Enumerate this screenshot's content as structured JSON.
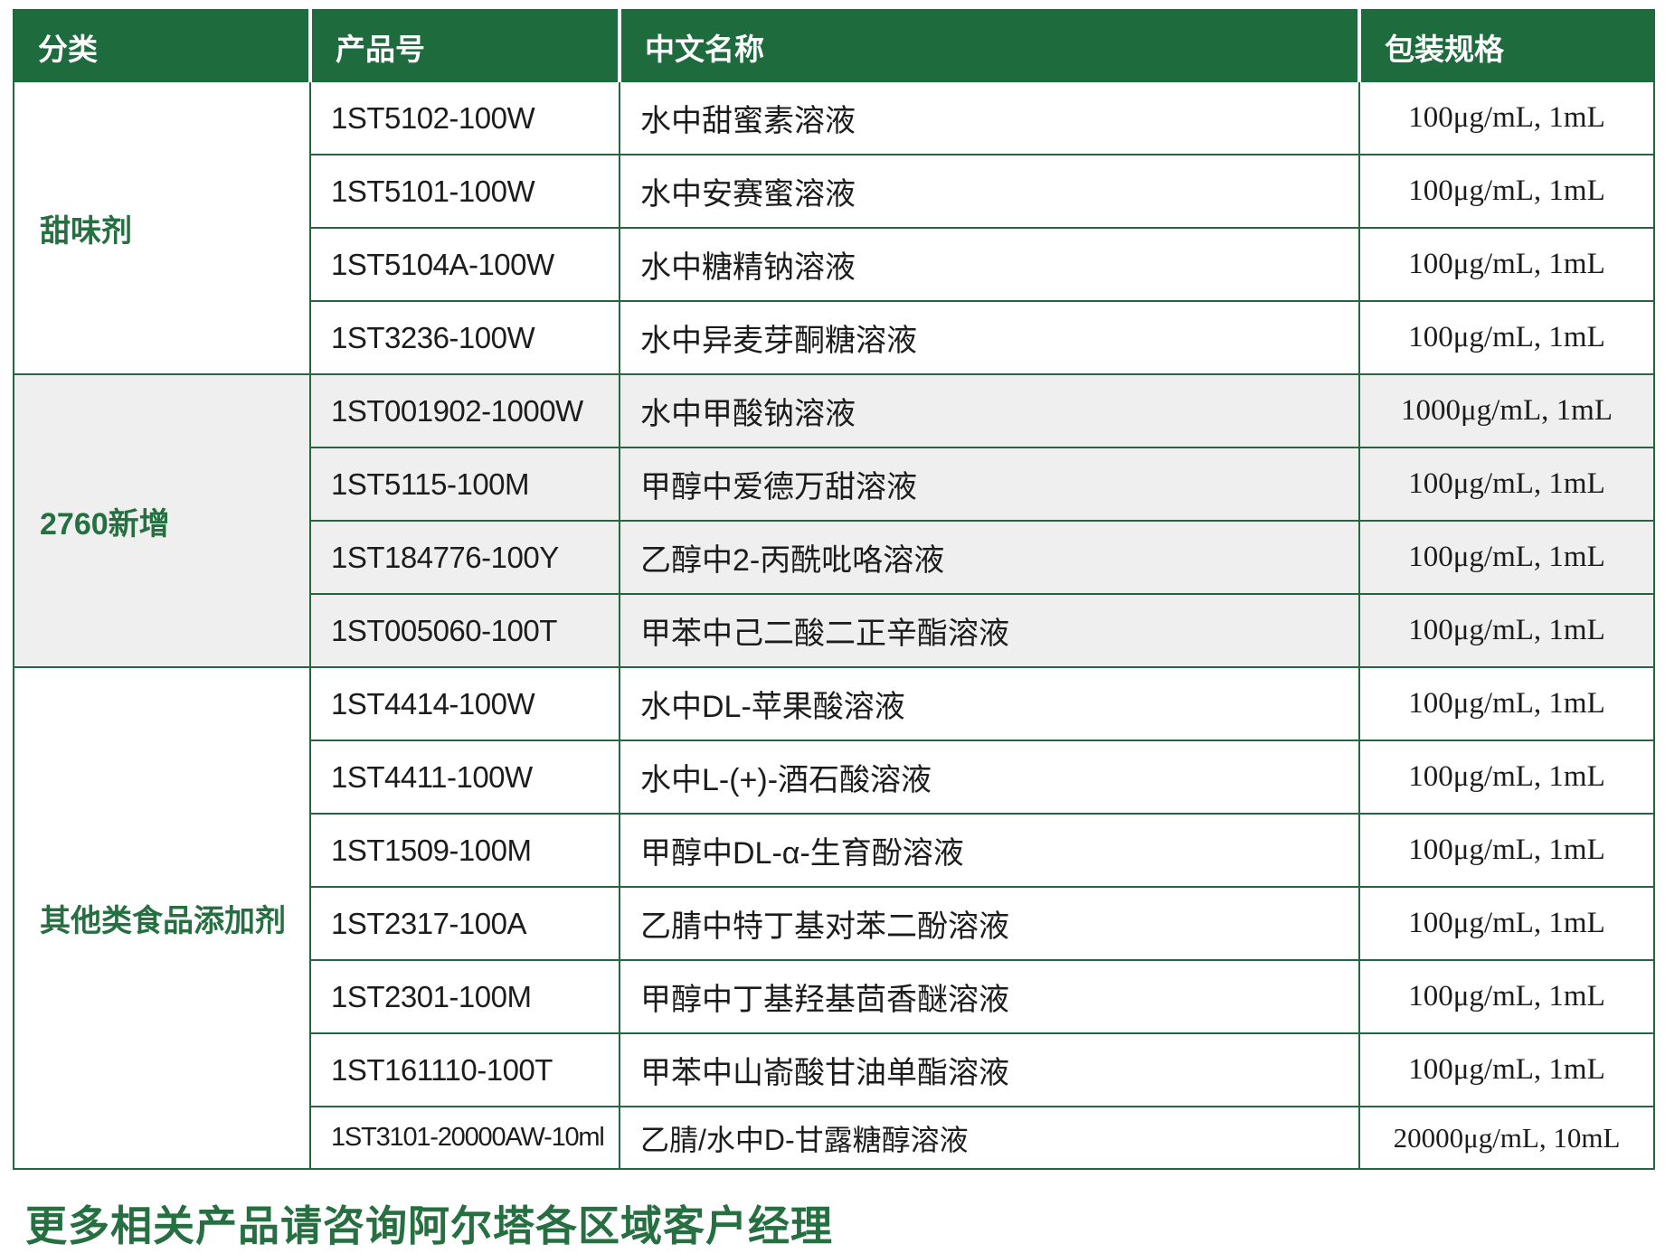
{
  "table": {
    "columns": [
      "分类",
      "产品号",
      "中文名称",
      "包装规格"
    ],
    "sections": [
      {
        "category": "甜味剂",
        "rows": [
          {
            "code": "1ST5102-100W",
            "name": "水中甜蜜素溶液",
            "spec": "100μg/mL, 1mL"
          },
          {
            "code": "1ST5101-100W",
            "name": "水中安赛蜜溶液",
            "spec": "100μg/mL, 1mL"
          },
          {
            "code": "1ST5104A-100W",
            "name": "水中糖精钠溶液",
            "spec": "100μg/mL, 1mL"
          },
          {
            "code": "1ST3236-100W",
            "name": "水中异麦芽酮糖溶液",
            "spec": "100μg/mL, 1mL"
          }
        ]
      },
      {
        "category": "2760新增",
        "rows": [
          {
            "code": "1ST001902-1000W",
            "name": "水中甲酸钠溶液",
            "spec": "1000μg/mL, 1mL"
          },
          {
            "code": "1ST5115-100M",
            "name": "甲醇中爱德万甜溶液",
            "spec": "100μg/mL, 1mL"
          },
          {
            "code": "1ST184776-100Y",
            "name": "乙醇中2-丙酰吡咯溶液",
            "spec": "100μg/mL, 1mL"
          },
          {
            "code": "1ST005060-100T",
            "name": "甲苯中己二酸二正辛酯溶液",
            "spec": "100μg/mL, 1mL"
          }
        ]
      },
      {
        "category": "其他类食品添加剂",
        "rows": [
          {
            "code": "1ST4414-100W",
            "name": "水中DL-苹果酸溶液",
            "spec": "100μg/mL, 1mL"
          },
          {
            "code": "1ST4411-100W",
            "name": "水中L-(+)-酒石酸溶液",
            "spec": "100μg/mL, 1mL"
          },
          {
            "code": "1ST1509-100M",
            "name": "甲醇中DL-α-生育酚溶液",
            "spec": "100μg/mL, 1mL"
          },
          {
            "code": "1ST2317-100A",
            "name": "乙腈中特丁基对苯二酚溶液",
            "spec": "100μg/mL, 1mL"
          },
          {
            "code": "1ST2301-100M",
            "name": "甲醇中丁基羟基茴香醚溶液",
            "spec": "100μg/mL, 1mL"
          },
          {
            "code": "1ST161110-100T",
            "name": "甲苯中山嵛酸甘油单酯溶液",
            "spec": "100μg/mL, 1mL"
          },
          {
            "code": "1ST3101-20000AW-10ml",
            "name": "乙腈/水中D-甘露糖醇溶液",
            "spec": "20000μg/mL, 10mL"
          }
        ]
      }
    ]
  },
  "footer": {
    "note": "更多相关产品请咨询阿尔塔各区域客户经理"
  },
  "colors": {
    "header_bg": "#1e6b3d",
    "row_border": "#276440",
    "alt_section_bg": "#efeff0",
    "accent_text": "#256f41",
    "body_text": "#1c1c1c"
  }
}
